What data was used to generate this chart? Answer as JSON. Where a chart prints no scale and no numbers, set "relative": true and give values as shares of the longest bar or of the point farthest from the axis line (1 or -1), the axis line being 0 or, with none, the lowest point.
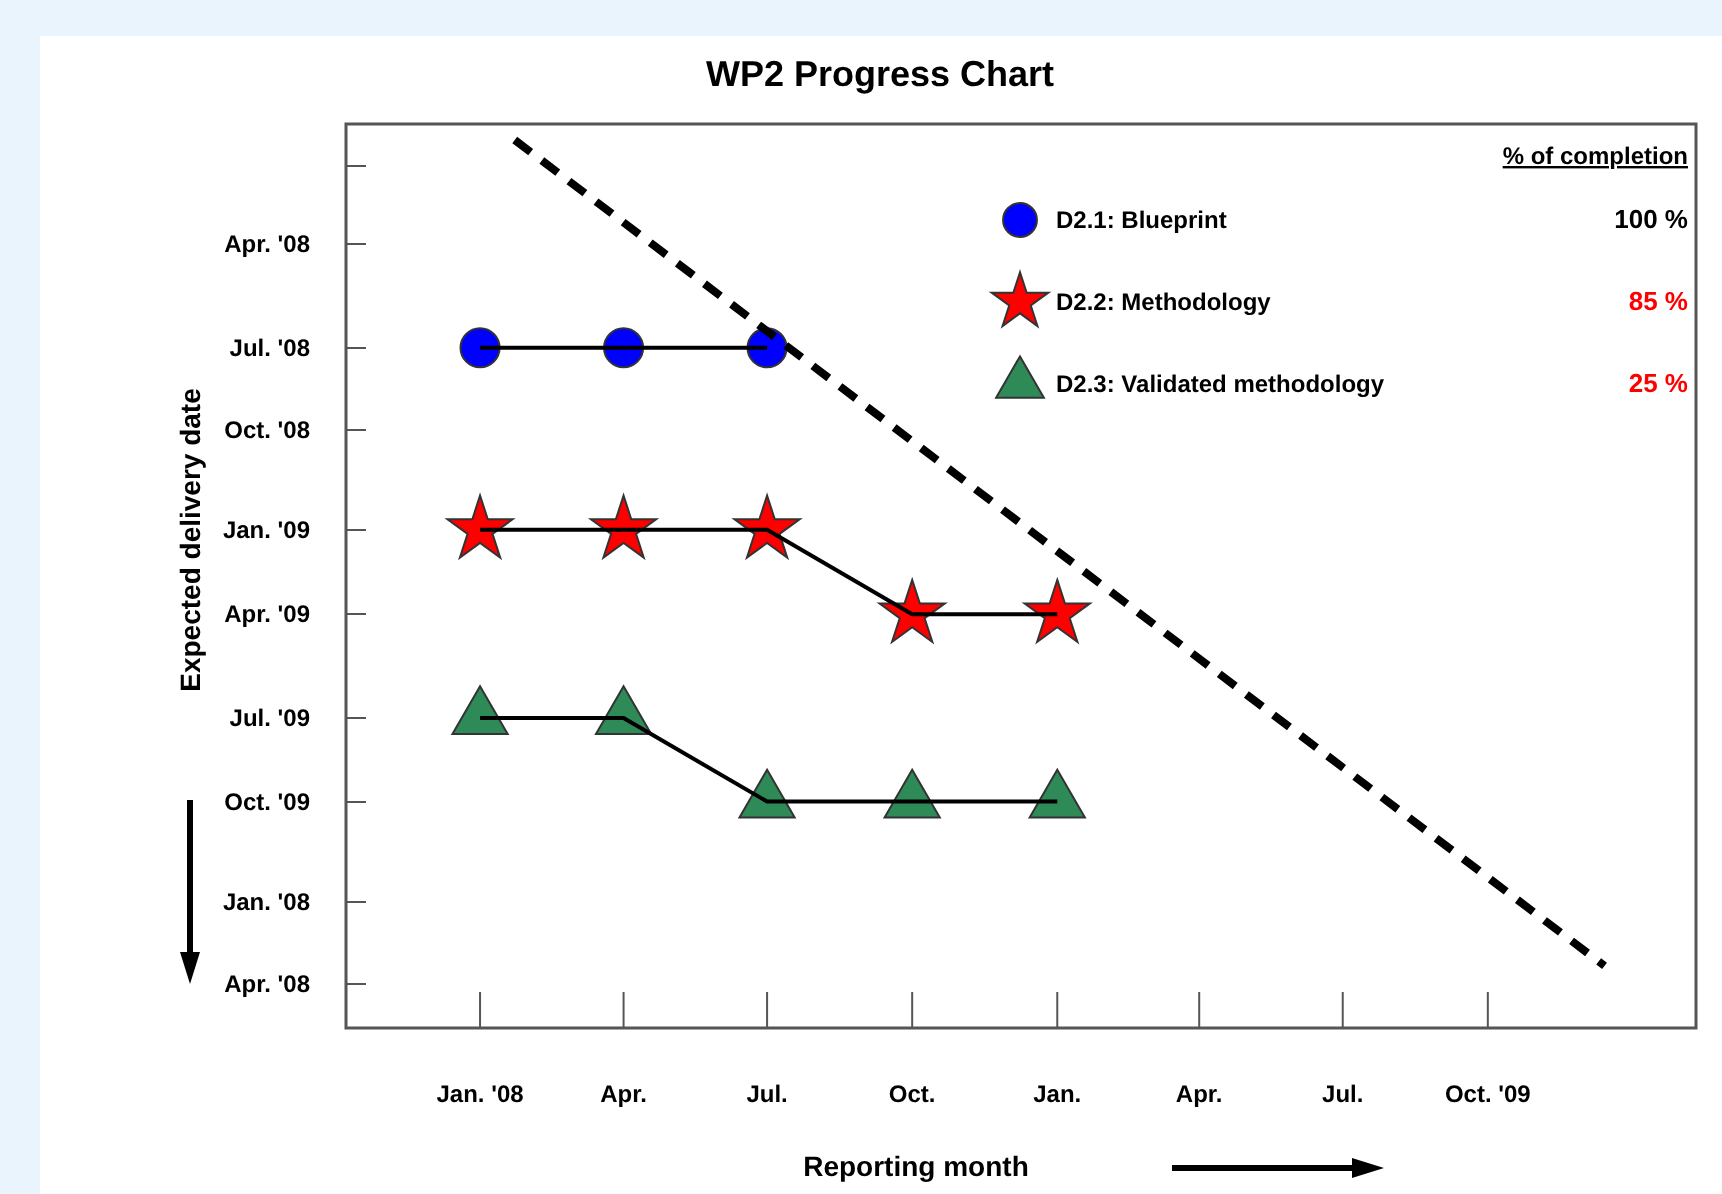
{
  "chart_data": {
    "type": "line",
    "title": "WP2 Progress Chart",
    "xlabel": "Reporting month",
    "ylabel": "Expected delivery date",
    "legend_title": "% of completion",
    "legend": "top right",
    "grid": false,
    "x": [
      "2008-01",
      "2008-04",
      "2008-07",
      "2008-10",
      "2009-01"
    ],
    "xlim": [
      "2007-10-08",
      "2010-02-10"
    ],
    "xticks": [
      {
        "value": "2008-01",
        "label": "Jan. '08"
      },
      {
        "value": "2008-04",
        "label": "Apr."
      },
      {
        "value": "2008-07",
        "label": "Jul."
      },
      {
        "value": "2008-10",
        "label": "Oct."
      },
      {
        "value": "2009-01",
        "label": "Jan."
      },
      {
        "value": "2009-04",
        "label": "Apr."
      },
      {
        "value": "2009-07",
        "label": "Jul."
      },
      {
        "value": "2009-10",
        "label": "Oct. '09"
      }
    ],
    "relative": true,
    "series": [
      {
        "name": "D2.1: Blueprint",
        "color": "#0000ff",
        "marker": "circle",
        "values": [
          0.766,
          0.766,
          0.766,
          null,
          null
        ]
      },
      {
        "name": "D2.2: Methodology",
        "color": "#ff0000",
        "marker": "star",
        "values": [
          0.561,
          0.561,
          0.561,
          0.466,
          0.466
        ]
      },
      {
        "name": "D2.3: Validated methodology",
        "color": "#2e8b57",
        "marker": "triangle",
        "values": [
          0.349,
          0.349,
          0.255,
          0.255,
          0.255
        ]
      },
      {
        "type": "line",
        "color": "#000000",
        "marker": "none",
        "line_style": "dashed",
        "x": [
          "2008-01-23",
          "2009-12-14"
        ],
        "values": [
          1,
          0.07
        ]
      }
    ],
    "annotations": [
      "100 %",
      "85 %",
      "25 %",
      "Apr. '08",
      "Jul. '08",
      "Oct. '08",
      "Jan. '09",
      "Apr. '09",
      "Jul. '09",
      "Oct. '09",
      "Jan. '08",
      "Apr. '08"
    ]
  }
}
